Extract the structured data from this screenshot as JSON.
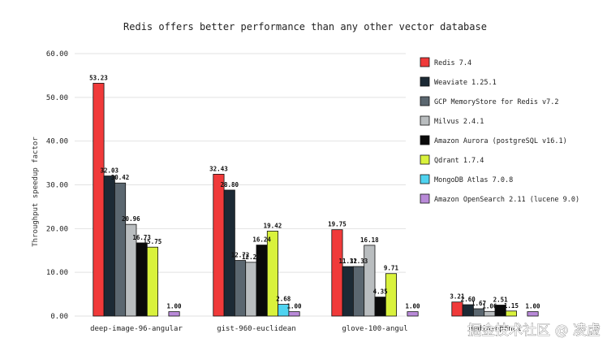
{
  "chart_data": {
    "type": "bar",
    "title": "Redis offers better performance than any other vector database",
    "xlabel": "",
    "ylabel": "Throughput speedup factor",
    "ylim": [
      0,
      60
    ],
    "yticks": [
      "0.00",
      "10.00",
      "20.00",
      "30.00",
      "40.00",
      "50.00",
      "60.00"
    ],
    "ytick_values": [
      0,
      10,
      20,
      30,
      40,
      50,
      60
    ],
    "grid": true,
    "legend_position": "right",
    "categories": [
      "deep-image-96-angular",
      "gist-960-euclidean",
      "glove-100-angular",
      "dbpedia-openai-1M-angular"
    ],
    "categories_display": [
      "deep-image-96-angular",
      "gist-960-euclidean",
      "glove-100-angul",
      "nedia-openai"
    ],
    "series": [
      {
        "name": "Redis 7.4",
        "color": "#f03a3a",
        "values": [
          53.23,
          32.43,
          19.75,
          3.21
        ],
        "labels": [
          "53.23",
          "32.43",
          "19.75",
          "3.21"
        ]
      },
      {
        "name": "Weaviate 1.25.1",
        "color": "#1c2a35",
        "values": [
          32.03,
          28.8,
          11.32,
          2.6
        ],
        "labels": [
          "32.03",
          "28.80",
          "11.32",
          "2.60"
        ]
      },
      {
        "name": "GCP MemoryStore for Redis v7.2",
        "color": "#5b6770",
        "values": [
          30.42,
          12.72,
          11.33,
          1.67
        ],
        "labels": [
          "30.42",
          "12.72",
          "11.33",
          "1.67"
        ]
      },
      {
        "name": "Milvus 2.4.1",
        "color": "#b9bdbf",
        "values": [
          20.96,
          12.29,
          16.18,
          1.06
        ],
        "labels": [
          "20.96",
          "12.29",
          "16.18",
          "1.06"
        ]
      },
      {
        "name": "Amazon Aurora (postgreSQL v16.1)",
        "color": "#0a0a0a",
        "values": [
          16.73,
          16.24,
          4.35,
          2.51
        ],
        "labels": [
          "16.73",
          "16.24",
          "4.35",
          "2.51"
        ]
      },
      {
        "name": "Qdrant 1.7.4",
        "color": "#d9f23c",
        "values": [
          15.75,
          19.42,
          9.71,
          1.15
        ],
        "labels": [
          "15.75",
          "19.42",
          "9.71",
          "1.15"
        ]
      },
      {
        "name": "MongoDB Atlas 7.0.8",
        "color": "#4fd3f0",
        "values": [
          null,
          2.68,
          null,
          null
        ],
        "labels": [
          "",
          "2.68",
          "",
          ""
        ]
      },
      {
        "name": "Amazon OpenSearch 2.11 (lucene 9.0)",
        "color": "#b98ad8",
        "values": [
          1.0,
          1.0,
          1.0,
          1.0
        ],
        "labels": [
          "1.00",
          "1.00",
          "1.00",
          "1.00"
        ]
      }
    ]
  },
  "watermark": "掘金技术社区 @ 凌虚"
}
